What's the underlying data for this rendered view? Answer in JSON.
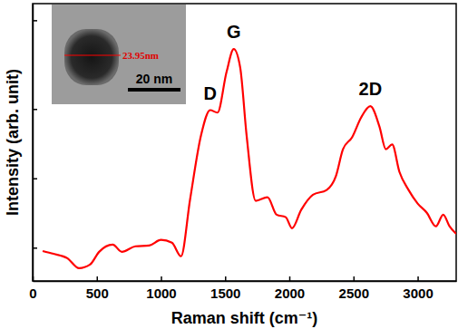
{
  "chart_data": {
    "type": "line",
    "x_label": "Raman shift (cm⁻¹)",
    "y_label": "Intensity (arb. unit)",
    "x": [
      78,
      163,
      270,
      362,
      447,
      518,
      624,
      695,
      801,
      908,
      1000,
      1085,
      1156,
      1227,
      1312,
      1383,
      1440,
      1511,
      1567,
      1617,
      1667,
      1738,
      1830,
      1901,
      1972,
      2021,
      2092,
      2184,
      2291,
      2362,
      2418,
      2489,
      2560,
      2631,
      2702,
      2752,
      2801,
      2858,
      2929,
      3000,
      3071,
      3142,
      3199,
      3248,
      3300
    ],
    "values": [
      10.8,
      9.8,
      8.2,
      4.6,
      5.9,
      10.5,
      13.1,
      10.5,
      12.5,
      12.8,
      14.8,
      13.8,
      8.9,
      29.5,
      52.5,
      61.6,
      60.7,
      75.4,
      83.6,
      77,
      52.5,
      28.9,
      30.2,
      23.9,
      23,
      19,
      25.6,
      31.1,
      32.8,
      37.7,
      47.5,
      51.8,
      59,
      63,
      55.7,
      47.5,
      49.2,
      39.3,
      32.8,
      27.9,
      24.6,
      19.7,
      23.9,
      19.7,
      17
    ],
    "color": "#ff0000",
    "xlim": [
      0,
      3300
    ],
    "xticks": [
      0,
      500,
      1000,
      1500,
      2000,
      2500,
      3000
    ],
    "ylim": [
      0,
      100
    ],
    "yticks": [
      12,
      37,
      62,
      94
    ],
    "tick_labels": "x",
    "annotations": [
      {
        "text": "D",
        "x": 1383,
        "y": 61.6
      },
      {
        "text": "G",
        "x": 1567,
        "y": 83.6
      },
      {
        "text": "2D",
        "x": 2631,
        "y": 63
      }
    ],
    "inset": {
      "measurement": "23.95nm",
      "scale_bar": "20 nm"
    }
  }
}
